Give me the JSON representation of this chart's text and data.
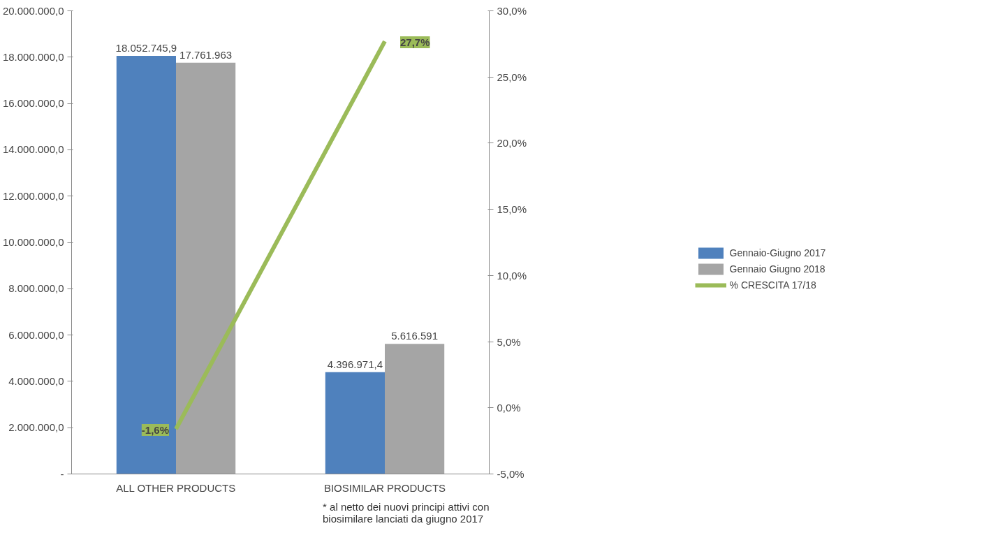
{
  "chart_data": {
    "type": "bar",
    "categories": [
      "ALL OTHER PRODUCTS",
      "BIOSIMILAR PRODUCTS"
    ],
    "series": [
      {
        "name": "Gennaio-Giugno 2017",
        "color": "#4f81bd",
        "values": [
          18052745.9,
          4396971.4
        ],
        "value_labels": [
          "18.052.745,9",
          "4.396.971,4"
        ]
      },
      {
        "name": "Gennaio Giugno 2018",
        "color": "#a5a5a5",
        "values": [
          17761963,
          5616591
        ],
        "value_labels": [
          "17.761.963",
          "5.616.591"
        ]
      },
      {
        "name": "% CRESCITA 17/18",
        "type": "line",
        "axis": "y2",
        "color": "#9bbb59",
        "values": [
          -1.6,
          27.7
        ],
        "value_labels": [
          "-1,6%",
          "27,7%"
        ]
      }
    ],
    "ylim": [
      0,
      20000000
    ],
    "yticks": [
      {
        "value": 0,
        "label": "-"
      },
      {
        "value": 2000000,
        "label": "2.000.000,0"
      },
      {
        "value": 4000000,
        "label": "4.000.000,0"
      },
      {
        "value": 6000000,
        "label": "6.000.000,0"
      },
      {
        "value": 8000000,
        "label": "8.000.000,0"
      },
      {
        "value": 10000000,
        "label": "10.000.000,0"
      },
      {
        "value": 12000000,
        "label": "12.000.000,0"
      },
      {
        "value": 14000000,
        "label": "14.000.000,0"
      },
      {
        "value": 16000000,
        "label": "16.000.000,0"
      },
      {
        "value": 18000000,
        "label": "18.000.000,0"
      },
      {
        "value": 20000000,
        "label": "20.000.000,0"
      }
    ],
    "y2lim": [
      -5,
      30
    ],
    "y2ticks": [
      {
        "value": -5,
        "label": "-5,0%"
      },
      {
        "value": 0,
        "label": "0,0%"
      },
      {
        "value": 5,
        "label": "5,0%"
      },
      {
        "value": 10,
        "label": "10,0%"
      },
      {
        "value": 15,
        "label": "15,0%"
      },
      {
        "value": 20,
        "label": "20,0%"
      },
      {
        "value": 25,
        "label": "25,0%"
      },
      {
        "value": 30,
        "label": "30,0%"
      }
    ],
    "grid": false,
    "legend": "right",
    "annotations": [
      "* al netto dei nuovi principi attivi con biosimilare lanciati da giugno 2017"
    ]
  }
}
